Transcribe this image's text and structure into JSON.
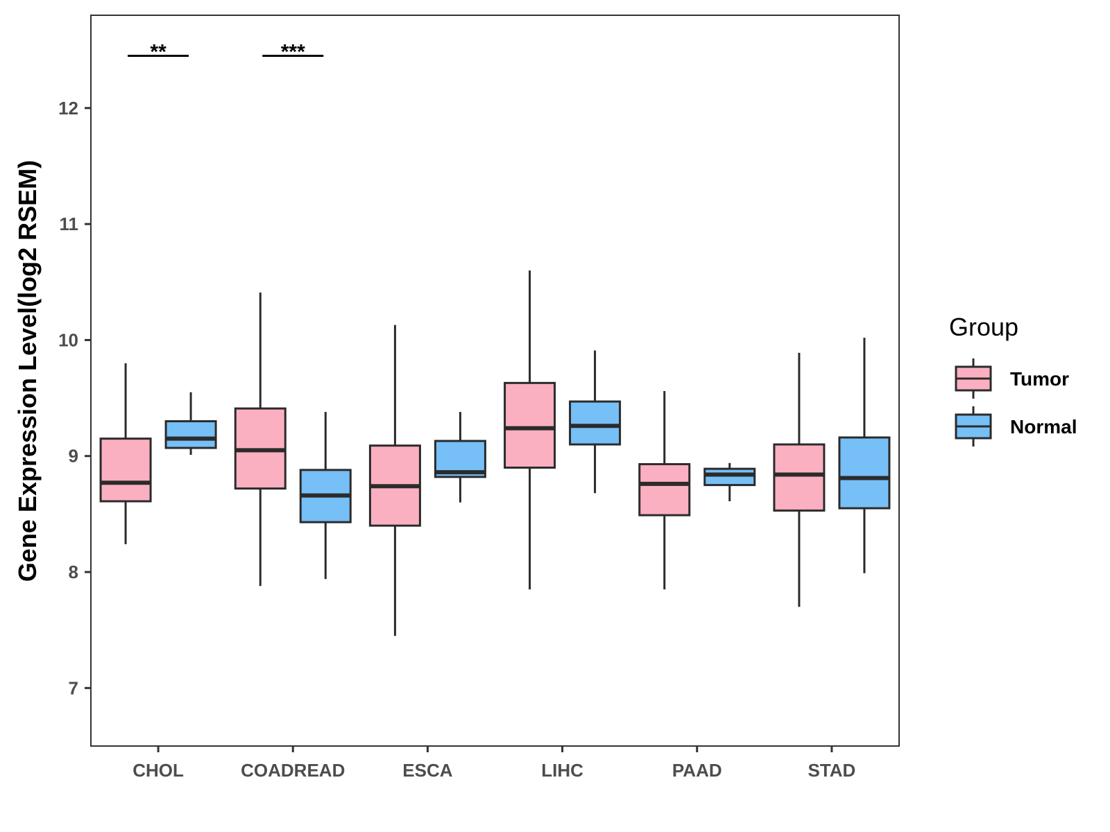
{
  "chart_data": {
    "type": "boxplot",
    "title": "",
    "xlabel": "",
    "ylabel": "Gene Expression Level(log2 RSEM)",
    "ylim": [
      6.5,
      12.8
    ],
    "yticks": [
      7,
      8,
      9,
      10,
      11,
      12
    ],
    "categories": [
      "CHOL",
      "COADREAD",
      "ESCA",
      "LIHC",
      "PAAD",
      "STAD"
    ],
    "legend": {
      "title": "Group",
      "position": "right",
      "entries": [
        {
          "name": "Tumor",
          "color": "#FBB0C1"
        },
        {
          "name": "Normal",
          "color": "#77BFF7"
        }
      ]
    },
    "series": [
      {
        "name": "Tumor",
        "color": "#FBB0C1",
        "boxes": [
          {
            "min": 8.24,
            "q1": 8.61,
            "median": 8.77,
            "q3": 9.15,
            "max": 9.8
          },
          {
            "min": 7.88,
            "q1": 8.72,
            "median": 9.05,
            "q3": 9.41,
            "max": 10.41
          },
          {
            "min": 7.45,
            "q1": 8.4,
            "median": 8.74,
            "q3": 9.09,
            "max": 10.13
          },
          {
            "min": 7.85,
            "q1": 8.9,
            "median": 9.24,
            "q3": 9.63,
            "max": 10.6
          },
          {
            "min": 7.85,
            "q1": 8.49,
            "median": 8.76,
            "q3": 8.93,
            "max": 9.56
          },
          {
            "min": 7.7,
            "q1": 8.53,
            "median": 8.84,
            "q3": 9.1,
            "max": 9.89
          }
        ]
      },
      {
        "name": "Normal",
        "color": "#77BFF7",
        "boxes": [
          {
            "min": 9.01,
            "q1": 9.07,
            "median": 9.15,
            "q3": 9.3,
            "max": 9.55
          },
          {
            "min": 7.94,
            "q1": 8.43,
            "median": 8.66,
            "q3": 8.88,
            "max": 9.38
          },
          {
            "min": 8.6,
            "q1": 8.82,
            "median": 8.86,
            "q3": 9.13,
            "max": 9.38
          },
          {
            "min": 8.68,
            "q1": 9.1,
            "median": 9.26,
            "q3": 9.47,
            "max": 9.91
          },
          {
            "min": 8.61,
            "q1": 8.75,
            "median": 8.84,
            "q3": 8.89,
            "max": 8.94
          },
          {
            "min": 7.99,
            "q1": 8.55,
            "median": 8.81,
            "q3": 9.16,
            "max": 10.02
          }
        ]
      }
    ],
    "annotations": [
      {
        "category": "CHOL",
        "label": "**",
        "y": 12.45
      },
      {
        "category": "COADREAD",
        "label": "***",
        "y": 12.45
      }
    ],
    "grid": false
  }
}
